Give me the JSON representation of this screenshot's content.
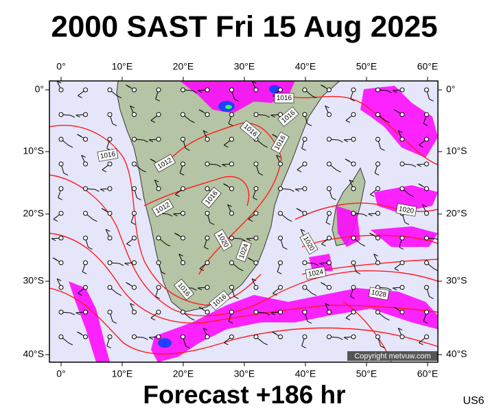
{
  "header": {
    "title": "2000 SAST Fri 15 Aug 2025"
  },
  "map": {
    "lon_labels": [
      "0°",
      "10°E",
      "20°E",
      "30°E",
      "40°E",
      "50°E",
      "60°E"
    ],
    "lat_labels": [
      "0°",
      "10°S",
      "20°S",
      "30°S",
      "40°S"
    ],
    "isobar_labels": [
      "1016",
      "1016",
      "1016",
      "1016",
      "1012",
      "1016",
      "1012",
      "1016",
      "1020",
      "1024",
      "1020",
      "1024",
      "1020",
      "1028",
      "1016",
      "1016"
    ],
    "copyright": "Copyright metvuw.com"
  },
  "footer": {
    "forecast": "Forecast +186 hr",
    "code": "US6"
  }
}
